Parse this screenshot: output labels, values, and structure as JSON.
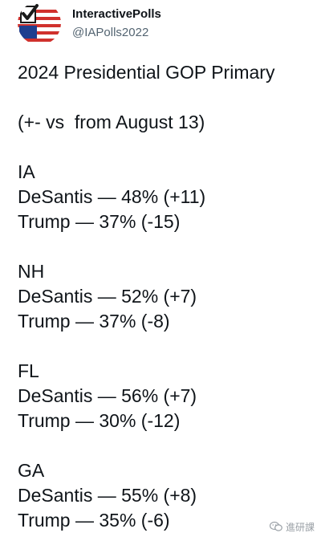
{
  "account": {
    "display_name": "InteractivePolls",
    "handle": "@IAPolls2022",
    "avatar_icon": "flag-checkmark-avatar-icon"
  },
  "tweet": {
    "title": "2024 Presidential GOP Primary",
    "subtitle": "(+- vs  from August 13)",
    "states": [
      {
        "state": "IA",
        "rows": [
          "DeSantis — 48% (+11)",
          "Trump — 37% (-15)"
        ]
      },
      {
        "state": "NH",
        "rows": [
          "DeSantis — 52% (+7)",
          "Trump — 37% (-8)"
        ]
      },
      {
        "state": "FL",
        "rows": [
          "DeSantis — 56% (+7)",
          "Trump — 30% (-12)"
        ]
      },
      {
        "state": "GA",
        "rows": [
          "DeSantis — 55% (+8)",
          "Trump — 35% (-6)"
        ]
      }
    ]
  },
  "watermark": {
    "icon": "wechat-icon",
    "text": "進研課"
  },
  "colors": {
    "text": "#0f1419",
    "secondary": "#536471",
    "flag_red": "#d0312d",
    "flag_blue": "#1f3f8f"
  }
}
